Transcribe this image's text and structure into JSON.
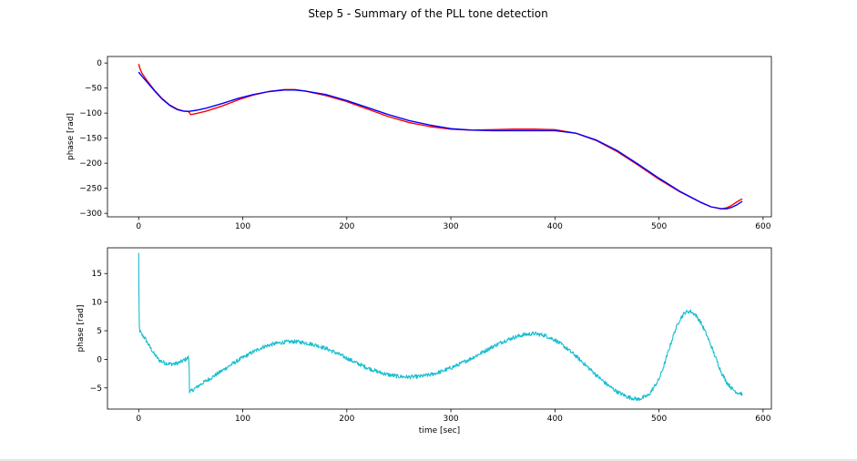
{
  "figure": {
    "suptitle": "Step 5 - Summary of the PLL tone detection"
  },
  "chart_data": [
    {
      "type": "line",
      "title": "",
      "xlabel": "",
      "ylabel": "phase [rad]",
      "xlim": [
        -30,
        608
      ],
      "ylim": [
        -307,
        13
      ],
      "xticks": [
        0,
        100,
        200,
        300,
        400,
        500,
        600
      ],
      "yticks": [
        0,
        -50,
        -100,
        -150,
        -200,
        -250,
        -300
      ],
      "grid": false,
      "legend": "none",
      "series": [
        {
          "color": "#ff0000",
          "x": [
            0,
            0.5,
            1,
            3,
            8,
            15,
            22,
            30,
            37,
            43,
            48,
            49,
            50,
            55,
            65,
            80,
            95,
            110,
            125,
            140,
            150,
            160,
            180,
            200,
            220,
            240,
            260,
            280,
            300,
            320,
            340,
            360,
            380,
            400,
            420,
            440,
            460,
            480,
            500,
            520,
            540,
            550,
            560,
            565,
            570,
            575,
            580
          ],
          "y": [
            -2,
            -5,
            -10,
            -20,
            -35,
            -54,
            -70,
            -84,
            -92,
            -96,
            -97,
            -100,
            -103,
            -101,
            -96,
            -86,
            -74,
            -64,
            -57,
            -53,
            -53,
            -56,
            -65,
            -77,
            -92,
            -107,
            -119,
            -127,
            -132,
            -134,
            -133,
            -132,
            -132,
            -133,
            -140,
            -155,
            -177,
            -204,
            -232,
            -257,
            -278,
            -287,
            -291,
            -289,
            -284,
            -277,
            -271
          ]
        },
        {
          "color": "#0000ff",
          "x": [
            0,
            1,
            3,
            8,
            15,
            22,
            30,
            37,
            43,
            48,
            49,
            50,
            55,
            65,
            80,
            95,
            110,
            125,
            140,
            150,
            160,
            180,
            200,
            220,
            240,
            260,
            280,
            300,
            320,
            340,
            360,
            380,
            400,
            420,
            440,
            460,
            480,
            500,
            520,
            540,
            550,
            560,
            565,
            570,
            575,
            580
          ],
          "y": [
            -18,
            -21,
            -26,
            -38,
            -55,
            -71,
            -85,
            -93,
            -96,
            -96.5,
            -96.5,
            -96,
            -94.5,
            -90,
            -81,
            -71,
            -63,
            -57,
            -54,
            -54,
            -56,
            -63,
            -75,
            -89,
            -103,
            -115,
            -124,
            -131,
            -134,
            -135,
            -135,
            -135,
            -135,
            -140,
            -154,
            -175,
            -202,
            -230,
            -256,
            -278,
            -287,
            -291,
            -291,
            -288,
            -283,
            -276
          ]
        }
      ]
    },
    {
      "type": "line",
      "title": "",
      "xlabel": "time [sec]",
      "ylabel": "phase [rad]",
      "xlim": [
        -30,
        608
      ],
      "ylim": [
        -8.7,
        19.5
      ],
      "xticks": [
        0,
        100,
        200,
        300,
        400,
        500,
        600
      ],
      "yticks": [
        15,
        10,
        5,
        0,
        -5
      ],
      "grid": false,
      "legend": "none",
      "series": [
        {
          "color": "#17becf",
          "noise": 0.35,
          "x": [
            0,
            0.3,
            0.6,
            1,
            3,
            6,
            10,
            15,
            20,
            25,
            30,
            35,
            40,
            44,
            47,
            48,
            48.6,
            48.8,
            49.3,
            50,
            55,
            60,
            70,
            80,
            90,
            100,
            110,
            120,
            130,
            140,
            150,
            160,
            170,
            180,
            190,
            200,
            210,
            220,
            230,
            240,
            250,
            260,
            270,
            280,
            290,
            300,
            310,
            320,
            330,
            340,
            350,
            360,
            370,
            380,
            390,
            400,
            410,
            420,
            430,
            440,
            450,
            460,
            470,
            480,
            490,
            500,
            505,
            510,
            515,
            520,
            525,
            530,
            535,
            540,
            545,
            550,
            555,
            560,
            565,
            570,
            575,
            580
          ],
          "y": [
            18.5,
            10,
            6,
            5,
            4.3,
            3.7,
            2.4,
            0.9,
            -0.2,
            -0.6,
            -0.8,
            -0.8,
            -0.5,
            -0.1,
            0.2,
            0.4,
            -2,
            -5.5,
            -5.8,
            -5.6,
            -5.0,
            -4.3,
            -3.2,
            -2.0,
            -0.8,
            0.3,
            1.3,
            2.2,
            2.7,
            3.0,
            3.1,
            2.9,
            2.5,
            1.9,
            1.1,
            0.2,
            -0.7,
            -1.5,
            -2.2,
            -2.7,
            -3.0,
            -3.1,
            -3.0,
            -2.7,
            -2.2,
            -1.5,
            -0.7,
            0.2,
            1.2,
            2.2,
            3.1,
            3.8,
            4.3,
            4.5,
            4.2,
            3.4,
            2.1,
            0.6,
            -1.1,
            -2.8,
            -4.4,
            -5.7,
            -6.6,
            -7.0,
            -6.3,
            -3.5,
            -1.0,
            2.0,
            4.8,
            7.0,
            8.2,
            8.4,
            7.8,
            6.5,
            4.6,
            2.4,
            0.0,
            -2.3,
            -4.0,
            -5.1,
            -5.8,
            -6.0
          ]
        }
      ]
    }
  ]
}
